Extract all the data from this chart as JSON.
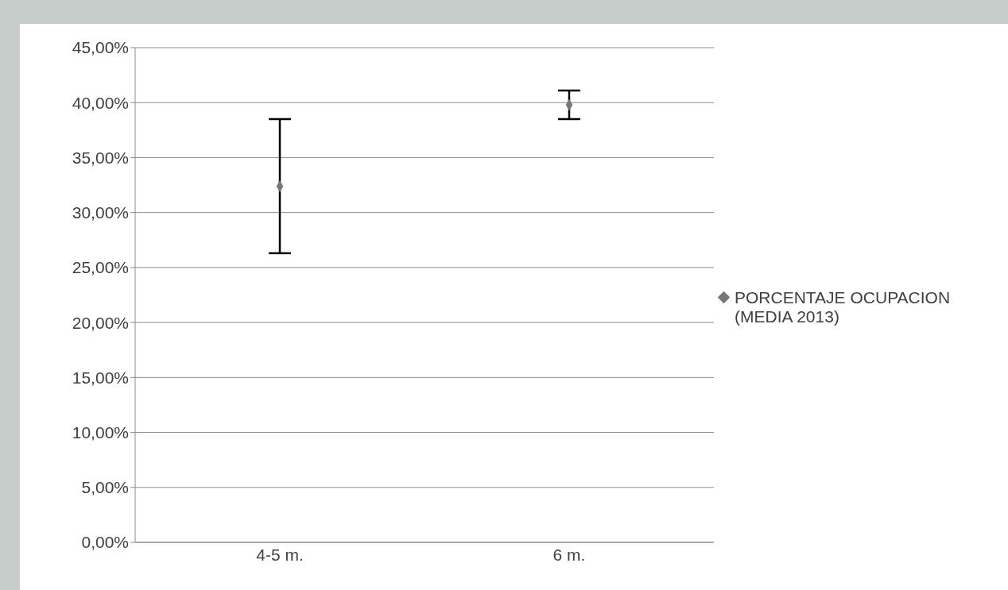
{
  "chart_data": {
    "type": "scatter",
    "categories": [
      "4-5 m.",
      "6 m."
    ],
    "series": [
      {
        "name": "PORCENTAJE OCUPACION (MEDIA 2013)",
        "color": "#777777",
        "values": [
          32.4,
          39.8
        ],
        "errors": [
          [
            26.3,
            38.5
          ],
          [
            38.5,
            41.1
          ]
        ]
      }
    ],
    "ylim": [
      0,
      45
    ],
    "yticks": [
      {
        "value": 0,
        "label": "0,00%"
      },
      {
        "value": 5,
        "label": "5,00%"
      },
      {
        "value": 10,
        "label": "10,00%"
      },
      {
        "value": 15,
        "label": "15,00%"
      },
      {
        "value": 20,
        "label": "20,00%"
      },
      {
        "value": 25,
        "label": "25,00%"
      },
      {
        "value": 30,
        "label": "30,00%"
      },
      {
        "value": 35,
        "label": "35,00%"
      },
      {
        "value": 40,
        "label": "40,00%"
      },
      {
        "value": 45,
        "label": "45,00%"
      }
    ],
    "grid": "y",
    "legend": "right",
    "marker": "diamond"
  }
}
